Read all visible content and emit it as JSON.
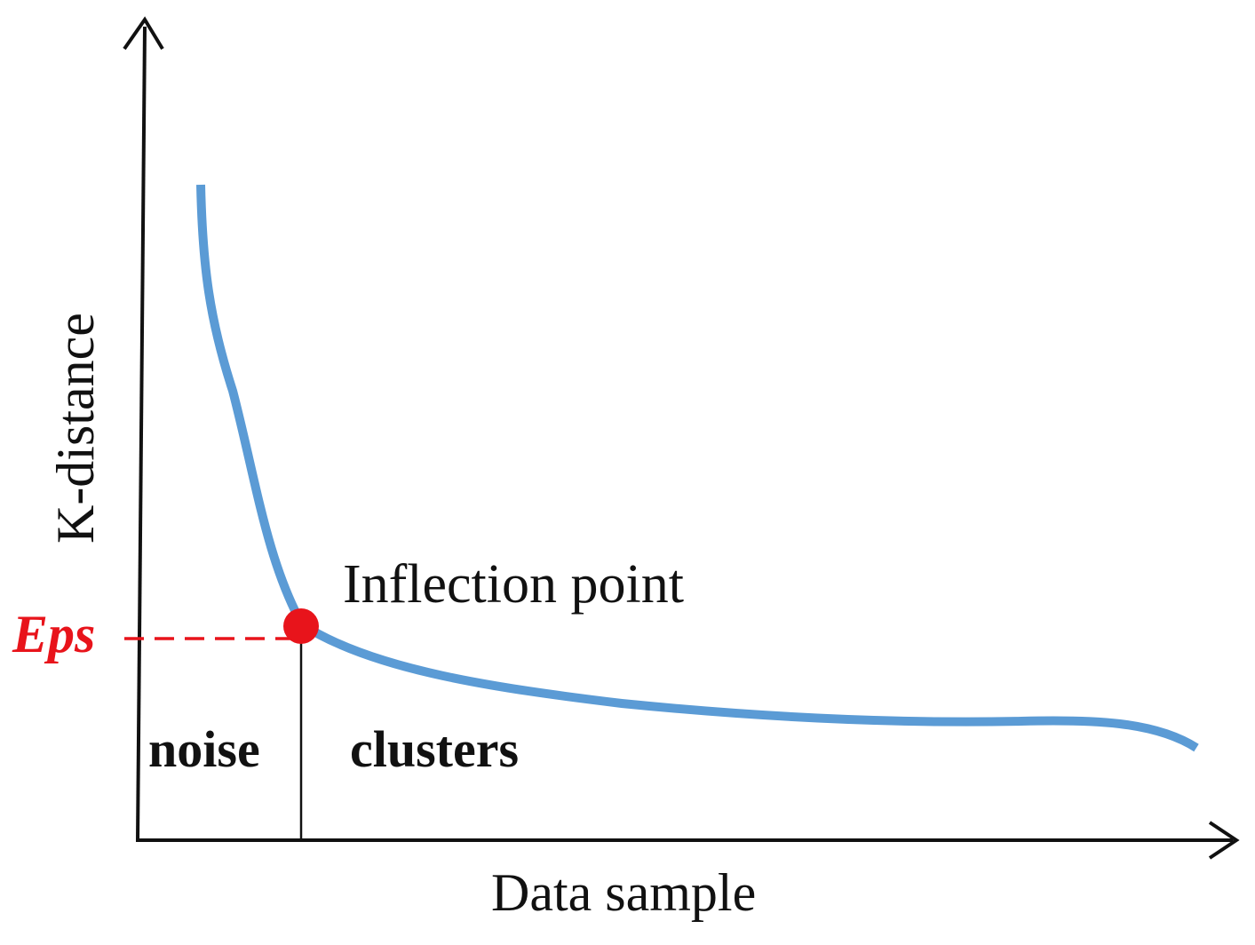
{
  "labels": {
    "y_axis": "K-distance",
    "x_axis": "Data sample",
    "inflection": "Inflection point",
    "eps": "Eps",
    "noise": "noise",
    "clusters": "clusters"
  },
  "colors": {
    "curve": "#5B9BD5",
    "eps": "#E8141B",
    "marker": "#E8141B",
    "axis": "#111111"
  }
}
